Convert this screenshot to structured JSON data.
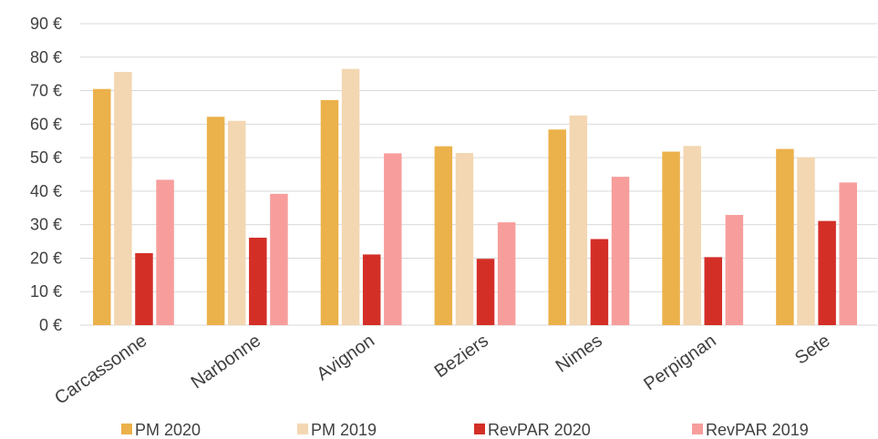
{
  "chart_data": {
    "type": "bar",
    "categories": [
      "Carcassonne",
      "Narbonne",
      "Avignon",
      "Beziers",
      "Nimes",
      "Perpignan",
      "Sete"
    ],
    "series": [
      {
        "name": "PM 2020",
        "color": "#ebb14a",
        "values": [
          70.5,
          62.2,
          67.2,
          53.4,
          58.4,
          51.8,
          52.6
        ]
      },
      {
        "name": "PM 2019",
        "color": "#f3d7b2",
        "values": [
          75.6,
          61.0,
          76.5,
          51.4,
          62.6,
          53.5,
          50.1
        ]
      },
      {
        "name": "RevPAR 2020",
        "color": "#d32f27",
        "values": [
          21.5,
          26.1,
          21.1,
          19.8,
          25.7,
          20.3,
          31.1
        ]
      },
      {
        "name": "RevPAR 2019",
        "color": "#f79e9c",
        "values": [
          43.4,
          39.2,
          51.3,
          30.7,
          44.3,
          32.9,
          42.6
        ]
      }
    ],
    "ylim": [
      0,
      90
    ],
    "y_ticks": [
      0,
      10,
      20,
      30,
      40,
      50,
      60,
      70,
      80,
      90
    ],
    "y_tick_suffix": " €",
    "grid": true,
    "legend": "bottom"
  }
}
